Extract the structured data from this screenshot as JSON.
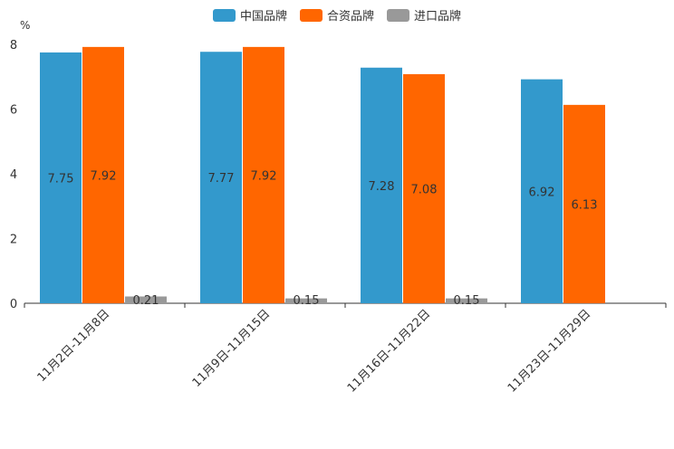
{
  "chart_data": {
    "type": "bar",
    "title": "",
    "ylabel": "%",
    "xlabel": "",
    "ylim": [
      0,
      8
    ],
    "yticks": [
      "0",
      "2",
      "4",
      "6",
      "8"
    ],
    "categories": [
      "11月2日-11月8日",
      "11月9日-11月15日",
      "11月16日-11月22日",
      "11月23日-11月29日"
    ],
    "series": [
      {
        "name": "中国品牌",
        "color": "#3399cc",
        "values": [
          7.75,
          7.77,
          7.28,
          6.92
        ],
        "labels": [
          "7.75",
          "7.77",
          "7.28",
          "6.92"
        ]
      },
      {
        "name": "合资品牌",
        "color": "#ff6600",
        "values": [
          7.92,
          7.92,
          7.08,
          6.13
        ],
        "labels": [
          "7.92",
          "7.92",
          "7.08",
          "6.13"
        ]
      },
      {
        "name": "进口品牌",
        "color": "#999999",
        "values": [
          0.21,
          0.15,
          0.15,
          null
        ],
        "labels": [
          "0.21",
          "0.15",
          "0.15",
          null
        ]
      }
    ],
    "legend": "top-center",
    "grid": false
  }
}
